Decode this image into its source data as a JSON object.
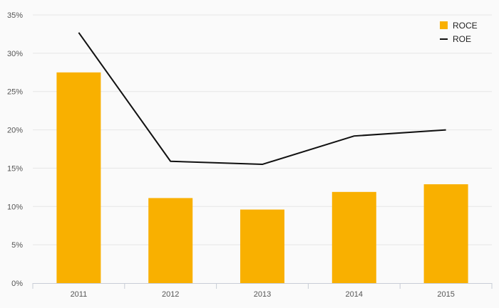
{
  "chart_data": {
    "type": "bar",
    "categories": [
      "2011",
      "2012",
      "2013",
      "2014",
      "2015"
    ],
    "series": [
      {
        "name": "ROCE",
        "type": "bar",
        "color": "#f9b000",
        "values": [
          27.5,
          11.1,
          9.6,
          11.9,
          12.9
        ]
      },
      {
        "name": "ROE",
        "type": "line",
        "color": "#111111",
        "values": [
          32.7,
          15.9,
          15.5,
          19.2,
          20.0
        ]
      }
    ],
    "y_tick_labels": [
      "0%",
      "5%",
      "10%",
      "15%",
      "20%",
      "25%",
      "30%",
      "35%"
    ],
    "ylim": [
      0,
      35
    ],
    "y_step": 5,
    "grid": true,
    "legend_position": "top-right",
    "background_color": "#fafafa",
    "grid_color": "#e6e6e6",
    "axis_color": "#c8cdd6"
  }
}
